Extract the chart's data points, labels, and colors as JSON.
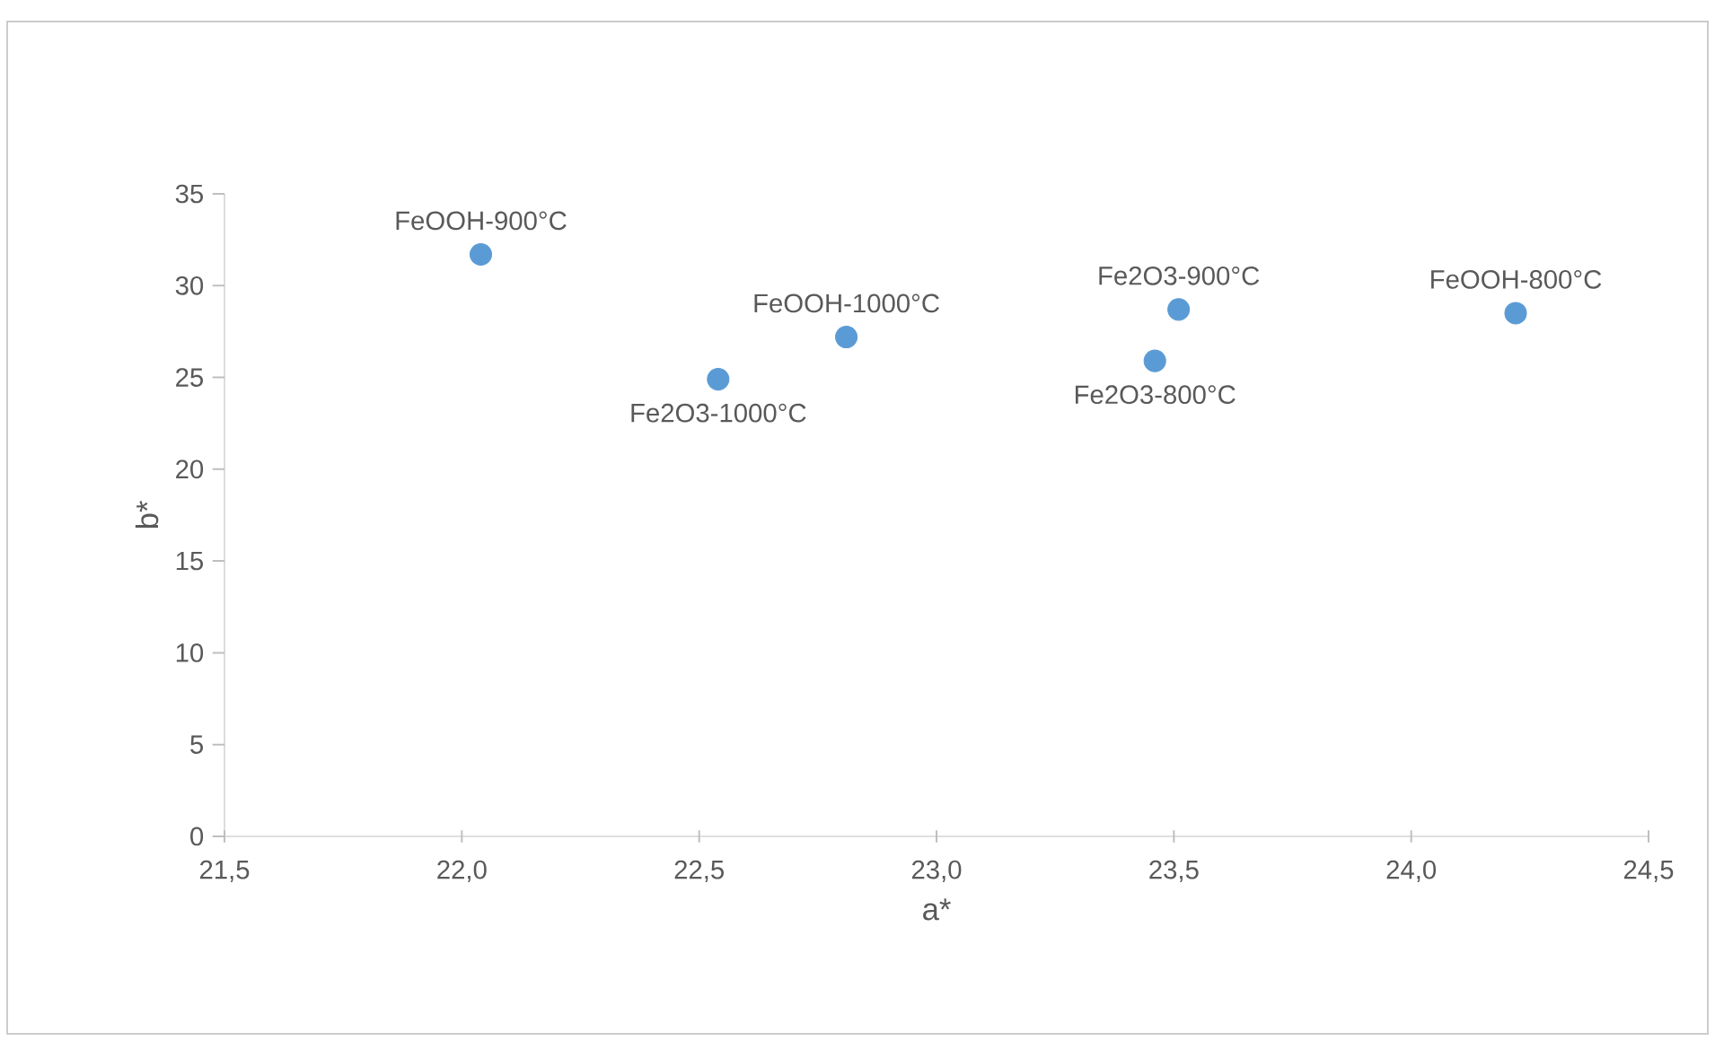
{
  "chart_data": {
    "type": "scatter",
    "xlabel": "a*",
    "ylabel": "b*",
    "x": [
      22.04,
      22.54,
      22.81,
      23.46,
      23.51,
      24.22
    ],
    "values": [
      31.7,
      24.9,
      27.2,
      25.9,
      28.7,
      28.5
    ],
    "color": "#5b9bd5",
    "marker": "circle",
    "xlim": [
      21.5,
      24.5
    ],
    "xticks": [
      {
        "value": 21.5,
        "label": "21,5"
      },
      {
        "value": 22.0,
        "label": "22,0"
      },
      {
        "value": 22.5,
        "label": "22,5"
      },
      {
        "value": 23.0,
        "label": "23,0"
      },
      {
        "value": 23.5,
        "label": "23,5"
      },
      {
        "value": 24.0,
        "label": "24,0"
      },
      {
        "value": 24.5,
        "label": "24,5"
      }
    ],
    "ylim": [
      0,
      35
    ],
    "yticks": [
      0,
      5,
      10,
      15,
      20,
      25,
      30,
      35
    ],
    "annotations": [
      {
        "text": "FeOOH-900°C",
        "x": 22.04,
        "y": 31.7
      },
      {
        "text": "Fe2O3-1000°C",
        "x": 22.54,
        "y": 24.9
      },
      {
        "text": "FeOOH-1000°C",
        "x": 22.81,
        "y": 27.2
      },
      {
        "text": "Fe2O3-800°C",
        "x": 23.46,
        "y": 25.9
      },
      {
        "text": "Fe2O3-900°C",
        "x": 23.51,
        "y": 28.7
      },
      {
        "text": "FeOOH-800°C",
        "x": 24.22,
        "y": 28.5
      }
    ]
  }
}
